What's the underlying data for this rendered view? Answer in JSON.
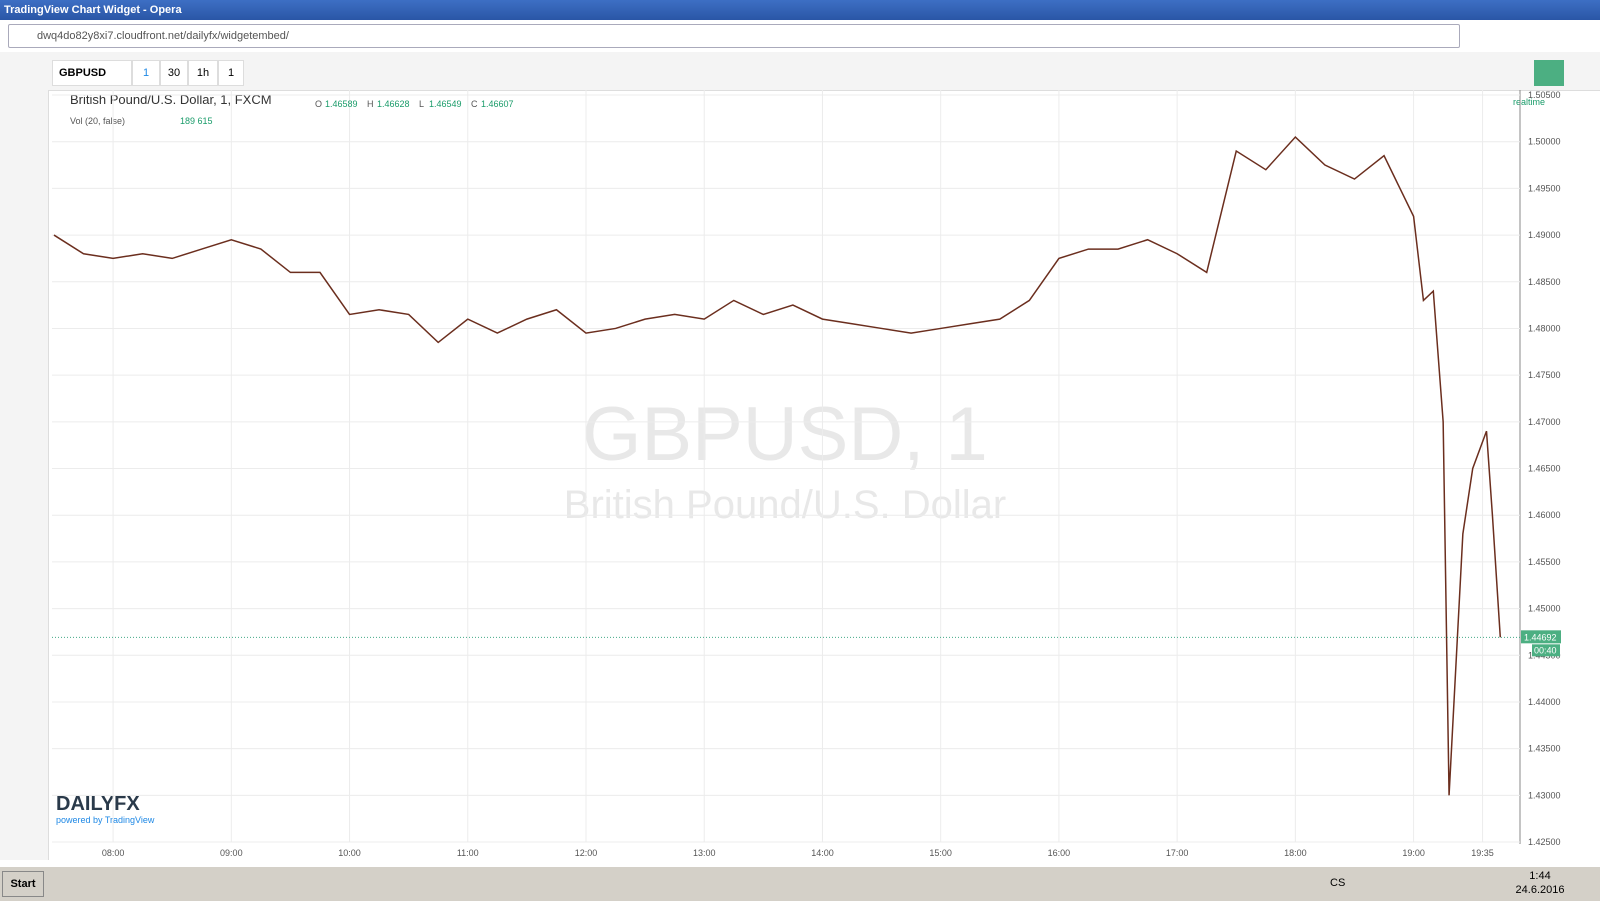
{
  "window": {
    "title": "TradingView Chart Widget - Opera",
    "url": "dwq4do82y8xi7.cloudfront.net/dailyfx/widgetembed/"
  },
  "toolbar": {
    "symbol": "GBPUSD",
    "intervals": [
      "1",
      "30",
      "1h",
      "1"
    ]
  },
  "chart_data": {
    "type": "line",
    "title": "British Pound/U.S. Dollar, 1, FXCM",
    "ohlc": [
      {
        "label": "O",
        "value": "1.46589"
      },
      {
        "label": "H",
        "value": "1.46628"
      },
      {
        "label": "L",
        "value": "1.46549"
      },
      {
        "label": "C",
        "value": "1.46607"
      }
    ],
    "volume_label": "Vol (20, false)",
    "volume_value": "189 615",
    "status": "realtime",
    "watermark": [
      "GBPUSD, 1",
      "British Pound/U.S. Dollar"
    ],
    "color": "#6b2e1e",
    "x": [
      "07:30",
      "07:45",
      "08:00",
      "08:15",
      "08:30",
      "08:45",
      "09:00",
      "09:15",
      "09:30",
      "09:45",
      "10:00",
      "10:15",
      "10:30",
      "10:45",
      "11:00",
      "11:15",
      "11:30",
      "11:45",
      "12:00",
      "12:15",
      "12:30",
      "12:45",
      "13:00",
      "13:15",
      "13:30",
      "13:45",
      "14:00",
      "14:15",
      "14:30",
      "14:45",
      "15:00",
      "15:15",
      "15:30",
      "15:45",
      "16:00",
      "16:15",
      "16:30",
      "16:45",
      "17:00",
      "17:15",
      "17:30",
      "17:45",
      "18:00",
      "18:15",
      "18:30",
      "18:45",
      "19:00",
      "19:05",
      "19:10",
      "19:15",
      "19:18",
      "19:25",
      "19:30",
      "19:37",
      "19:40",
      "19:44"
    ],
    "values": [
      1.49,
      1.488,
      1.4875,
      1.488,
      1.4875,
      1.4885,
      1.4895,
      1.4885,
      1.486,
      1.486,
      1.4815,
      1.482,
      1.4815,
      1.4785,
      1.481,
      1.4795,
      1.481,
      1.482,
      1.4795,
      1.48,
      1.481,
      1.4815,
      1.481,
      1.483,
      1.4815,
      1.4825,
      1.481,
      1.4805,
      1.48,
      1.4795,
      1.48,
      1.4805,
      1.481,
      1.483,
      1.4875,
      1.4885,
      1.4885,
      1.4895,
      1.488,
      1.486,
      1.499,
      1.497,
      1.5005,
      1.4975,
      1.496,
      1.4985,
      1.492,
      1.483,
      1.484,
      1.47,
      1.43,
      1.458,
      1.465,
      1.469,
      1.46,
      1.44692
    ],
    "xlim": [
      "07:29",
      "19:54"
    ],
    "xticks": [
      "08:00",
      "09:00",
      "10:00",
      "11:00",
      "12:00",
      "13:00",
      "14:00",
      "15:00",
      "16:00",
      "17:00",
      "18:00",
      "19:00",
      "19:35"
    ],
    "ylim": [
      1.425,
      1.505
    ],
    "yticks": [
      {
        "value": 1.425,
        "label": "1.42500"
      },
      {
        "value": 1.43,
        "label": "1.43000"
      },
      {
        "value": 1.435,
        "label": "1.43500"
      },
      {
        "value": 1.44,
        "label": "1.44000"
      },
      {
        "value": 1.445,
        "label": "1.44500"
      },
      {
        "value": 1.45,
        "label": "1.45000"
      },
      {
        "value": 1.455,
        "label": "1.45500"
      },
      {
        "value": 1.46,
        "label": "1.46000"
      },
      {
        "value": 1.465,
        "label": "1.46500"
      },
      {
        "value": 1.47,
        "label": "1.47000"
      },
      {
        "value": 1.475,
        "label": "1.47500"
      },
      {
        "value": 1.48,
        "label": "1.48000"
      },
      {
        "value": 1.485,
        "label": "1.48500"
      },
      {
        "value": 1.49,
        "label": "1.49000"
      },
      {
        "value": 1.495,
        "label": "1.49500"
      },
      {
        "value": 1.5,
        "label": "1.50000"
      },
      {
        "value": 1.505,
        "label": "1.50500"
      }
    ],
    "grid": true,
    "last_price": {
      "value": 1.44692,
      "label": "1.44692"
    },
    "countdown": "00:40",
    "logo": "DAILYFX",
    "powered": "powered by TradingView"
  },
  "taskbar": {
    "start": "Start",
    "lang": "CS",
    "time": "1:44",
    "date": "24.6.2016"
  }
}
